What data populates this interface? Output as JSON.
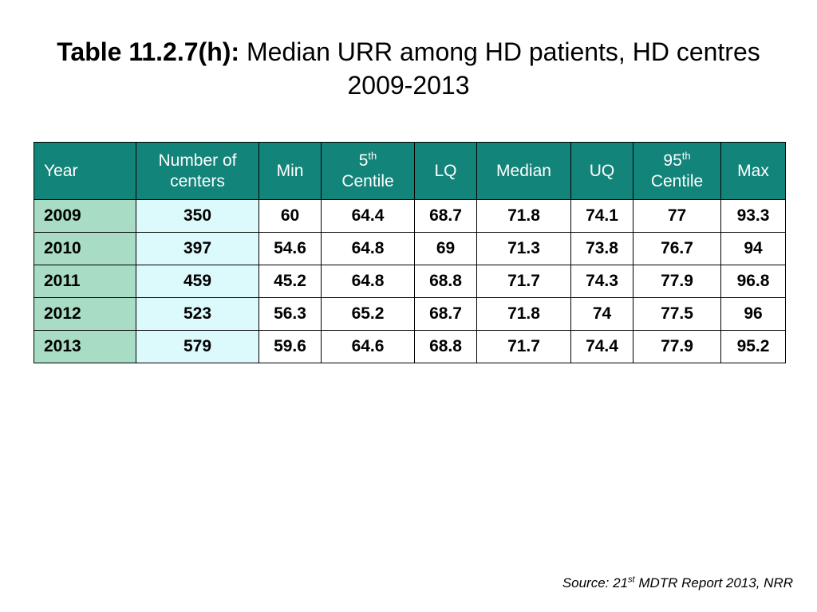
{
  "title": {
    "label": "Table 11.2.7(h):",
    "text": "Median URR among HD patients, HD centres 2009-2013"
  },
  "table": {
    "headers": {
      "year": "Year",
      "centers_line1": "Number of",
      "centers_line2": "centers",
      "min": "Min",
      "p5_num": "5",
      "p5_sup": "th",
      "p5_word": "Centile",
      "lq": "LQ",
      "median": "Median",
      "uq": "UQ",
      "p95_num": "95",
      "p95_sup": "th",
      "p95_word": "Centile",
      "max": "Max"
    },
    "rows": [
      {
        "year": "2009",
        "centers": "350",
        "min": "60",
        "p5": "64.4",
        "lq": "68.7",
        "median": "71.8",
        "uq": "74.1",
        "p95": "77",
        "max": "93.3"
      },
      {
        "year": "2010",
        "centers": "397",
        "min": "54.6",
        "p5": "64.8",
        "lq": "69",
        "median": "71.3",
        "uq": "73.8",
        "p95": "76.7",
        "max": "94"
      },
      {
        "year": "2011",
        "centers": "459",
        "min": "45.2",
        "p5": "64.8",
        "lq": "68.8",
        "median": "71.7",
        "uq": "74.3",
        "p95": "77.9",
        "max": "96.8"
      },
      {
        "year": "2012",
        "centers": "523",
        "min": "56.3",
        "p5": "65.2",
        "lq": "68.7",
        "median": "71.8",
        "uq": "74",
        "p95": "77.5",
        "max": "96"
      },
      {
        "year": "2013",
        "centers": "579",
        "min": "59.6",
        "p5": "64.6",
        "lq": "68.8",
        "median": "71.7",
        "uq": "74.4",
        "p95": "77.9",
        "max": "95.2"
      }
    ]
  },
  "source": {
    "prefix": "Source: 21",
    "sup": "st",
    "suffix": " MDTR Report 2013, NRR"
  },
  "colors": {
    "header_bg": "#13847a",
    "year_col_bg": "#a8dcc4",
    "centers_col_bg": "#dcfafb"
  }
}
